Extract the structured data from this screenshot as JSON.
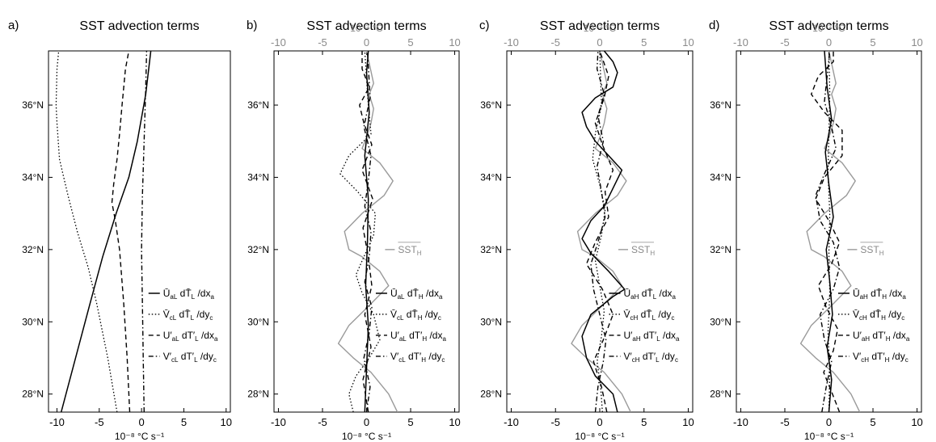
{
  "chart_data": [
    {
      "type": "line",
      "panel_label": "a)",
      "title": "SST advection terms",
      "xlabel": "10⁻⁸ °C s⁻¹",
      "xlim": [
        -11,
        10.5
      ],
      "xticks": [
        -10,
        -5,
        0,
        5,
        10
      ],
      "ylim": [
        27.5,
        37.5
      ],
      "yticks": [
        28,
        30,
        32,
        34,
        36
      ],
      "ytick_labels": [
        "28°N",
        "30°N",
        "32°N",
        "34°N",
        "36°N"
      ],
      "legend_placement": "bottom-right",
      "series": [
        {
          "name": "Ū_aL dT̄_L /dx_a",
          "style": "solid",
          "x": [
            -9.5,
            -7.8,
            -6.1,
            -4.6,
            -3.0,
            -1.5,
            -0.5,
            0.5,
            1.1
          ],
          "y": [
            27.5,
            29.0,
            30.5,
            31.8,
            33.0,
            34.0,
            35.0,
            36.3,
            37.5
          ]
        },
        {
          "name": "V̄_cL dT̄_L /dy_c",
          "style": "dotted",
          "x": [
            -2.9,
            -4.0,
            -5.3,
            -6.3,
            -7.6,
            -8.7,
            -9.7,
            -10.0,
            -10.1,
            -10.0,
            -9.8
          ],
          "y": [
            27.5,
            29.0,
            30.5,
            31.5,
            32.5,
            33.5,
            34.5,
            35.5,
            36.0,
            37.0,
            37.5
          ]
        },
        {
          "name": "U′_aL dT′_L /dx_a",
          "style": "dashed",
          "x": [
            -1.4,
            -1.7,
            -2.1,
            -2.6,
            -3.1,
            -3.5,
            -3.3,
            -2.9,
            -2.6,
            -2.3,
            -1.9,
            -1.5
          ],
          "y": [
            27.5,
            29.0,
            30.5,
            32.0,
            32.8,
            33.3,
            33.8,
            34.5,
            35.2,
            36.0,
            37.0,
            37.5
          ]
        },
        {
          "name": "V′_cL dT′_L /dy_c",
          "style": "dashdot",
          "x": [
            0.3,
            0.2,
            0.1,
            0.0,
            0.1,
            0.3,
            0.5,
            0.6
          ],
          "y": [
            27.5,
            29.0,
            30.5,
            32.0,
            33.5,
            35.0,
            36.5,
            37.5
          ]
        }
      ]
    },
    {
      "type": "line",
      "panel_label": "b)",
      "title": "SST advection terms",
      "top_axis_label": "10⁻² °C",
      "xlabel": "10⁻⁸ °C s⁻¹",
      "xlim": [
        -10.5,
        10.5
      ],
      "xticks": [
        -10,
        -5,
        0,
        5,
        10
      ],
      "ylim": [
        27.5,
        37.5
      ],
      "yticks": [
        28,
        30,
        32,
        34,
        36
      ],
      "ytick_labels": [
        "28°N",
        "30°N",
        "32°N",
        "34°N",
        "36°N"
      ],
      "legend_placement": "bottom-right",
      "sst_label": "SST_H",
      "series": [
        {
          "name": "SST_H",
          "style": "gray",
          "x": [
            3.5,
            2.5,
            0.5,
            -1.5,
            -3.2,
            -2.0,
            0.5,
            2.5,
            1.5,
            -0.5,
            -2.0,
            -2.5,
            -0.5,
            2.0,
            3.0,
            1.5,
            -0.5,
            0.0,
            0.5,
            0.8,
            0.3,
            0.8,
            0.0
          ],
          "y": [
            27.5,
            28.0,
            28.6,
            29.0,
            29.4,
            29.9,
            30.5,
            31.0,
            31.4,
            31.8,
            32.0,
            32.5,
            33.0,
            33.5,
            33.9,
            34.4,
            34.8,
            35.1,
            35.5,
            35.9,
            36.3,
            36.6,
            37.5
          ]
        },
        {
          "name": "Ū_aL dT̄_H /dx_a",
          "style": "solid",
          "x": [
            -0.2,
            0.0,
            0.2,
            -0.1,
            0.1,
            0.2,
            -0.2,
            0.3,
            0.0,
            0.2
          ],
          "y": [
            27.5,
            28.7,
            29.9,
            31.0,
            32.2,
            33.4,
            34.6,
            35.8,
            36.9,
            37.5
          ]
        },
        {
          "name": "V̄_cL dT̄_H /dy_c",
          "style": "dotted",
          "x": [
            -1.5,
            -2.0,
            -1.2,
            0.3,
            1.5,
            0.8,
            -0.5,
            -1.2,
            -0.3,
            0.8,
            1.0,
            -1.0,
            -3.0,
            -2.0,
            0.5,
            0.2,
            -0.2
          ],
          "y": [
            27.5,
            28.0,
            28.5,
            29.0,
            29.5,
            30.2,
            30.8,
            31.3,
            31.8,
            32.4,
            33.0,
            33.6,
            34.1,
            34.6,
            35.2,
            36.0,
            37.5
          ]
        },
        {
          "name": "U′_aL dT′_H /dx_a",
          "style": "dashed",
          "x": [
            0.2,
            -0.4,
            0.5,
            -0.2,
            0.6,
            0.2,
            -0.4,
            0.7,
            -0.5,
            0.6,
            -0.3,
            -0.8,
            0.3,
            -0.5,
            -0.5
          ],
          "y": [
            27.5,
            28.4,
            29.3,
            30.2,
            31.0,
            31.8,
            32.6,
            33.4,
            34.2,
            34.9,
            35.5,
            36.0,
            36.5,
            37.0,
            37.5
          ]
        },
        {
          "name": "V′_cL dT′_H /dy_c",
          "style": "dashdot",
          "x": [
            0.0,
            0.4,
            -0.3,
            0.3,
            0.6,
            -0.2,
            0.3,
            0.5,
            -0.2,
            0.2,
            0.5,
            -0.3,
            0.4,
            0.1
          ],
          "y": [
            27.5,
            28.2,
            29.0,
            29.7,
            30.4,
            31.1,
            31.8,
            32.5,
            33.2,
            33.9,
            34.6,
            35.4,
            36.2,
            37.5
          ]
        }
      ]
    },
    {
      "type": "line",
      "panel_label": "c)",
      "title": "SST advection terms",
      "top_axis_label": "10⁻² °C",
      "xlabel": "10⁻⁸ °C s⁻¹",
      "xlim": [
        -10.5,
        10.5
      ],
      "xticks": [
        -10,
        -5,
        0,
        5,
        10
      ],
      "ylim": [
        27.5,
        37.5
      ],
      "yticks": [
        28,
        30,
        32,
        34,
        36
      ],
      "ytick_labels": [
        "28°N",
        "30°N",
        "32°N",
        "34°N",
        "36°N"
      ],
      "legend_placement": "bottom-right",
      "sst_label": "SST_H",
      "series": [
        {
          "name": "SST_H",
          "style": "gray",
          "x": [
            3.5,
            2.5,
            0.5,
            -1.5,
            -3.2,
            -2.0,
            0.5,
            2.5,
            1.5,
            -0.5,
            -2.0,
            -2.5,
            -0.5,
            2.0,
            3.0,
            1.5,
            -0.5,
            0.0,
            0.5,
            0.8,
            0.3,
            0.8,
            0.0
          ],
          "y": [
            27.5,
            28.0,
            28.6,
            29.0,
            29.4,
            29.9,
            30.5,
            31.0,
            31.4,
            31.8,
            32.0,
            32.5,
            33.0,
            33.5,
            33.9,
            34.4,
            34.8,
            35.1,
            35.5,
            35.9,
            36.3,
            36.6,
            37.5
          ]
        },
        {
          "name": "Ū_aH dT̄_L /dx_a",
          "style": "solid",
          "x": [
            2.0,
            1.5,
            -0.5,
            -1.5,
            -2.0,
            -1.0,
            1.5,
            2.8,
            1.0,
            -1.0,
            -2.0,
            -1.0,
            0.5,
            1.5,
            2.5,
            1.0,
            -0.5,
            -1.5,
            -2.0,
            -0.5,
            1.5,
            2.0,
            1.5,
            0.5
          ],
          "y": [
            27.5,
            28.0,
            28.5,
            29.0,
            29.6,
            30.2,
            30.7,
            30.9,
            31.4,
            31.9,
            32.3,
            32.8,
            33.2,
            33.7,
            34.2,
            34.6,
            35.0,
            35.4,
            35.8,
            36.2,
            36.5,
            36.9,
            37.2,
            37.5
          ]
        },
        {
          "name": "V̄_cH dT̄_L /dy_c",
          "style": "dotted",
          "x": [
            0.3,
            0.1,
            -0.3,
            0.2,
            0.5,
            0.0,
            -0.5,
            0.2,
            0.6,
            0.0,
            -0.8,
            -0.5,
            0.2,
            0.0
          ],
          "y": [
            27.5,
            28.2,
            28.9,
            29.6,
            30.3,
            31.0,
            31.7,
            32.4,
            33.1,
            33.8,
            34.5,
            35.2,
            36.0,
            37.5
          ]
        },
        {
          "name": "U′_aH dT′_L /dx_a",
          "style": "dashed",
          "x": [
            0.8,
            0.2,
            -0.7,
            0.4,
            1.5,
            0.3,
            -1.5,
            -0.5,
            1.0,
            0.6,
            1.5,
            0.3,
            -0.5,
            0.5,
            1.0,
            0.0
          ],
          "y": [
            27.5,
            28.2,
            28.9,
            29.5,
            30.2,
            30.9,
            31.6,
            32.2,
            32.9,
            33.6,
            34.2,
            34.9,
            35.5,
            36.2,
            36.8,
            37.5
          ]
        },
        {
          "name": "V′_cH dT′_L /dy_c",
          "style": "dashdot",
          "x": [
            -0.5,
            -0.2,
            0.4,
            0.7,
            0.0,
            -0.7,
            -1.0,
            -0.2,
            0.6,
            0.2,
            -0.3,
            0.4,
            -0.2,
            0.5,
            -0.3,
            -0.2
          ],
          "y": [
            27.5,
            28.2,
            28.9,
            29.5,
            30.2,
            30.9,
            31.6,
            32.2,
            32.9,
            33.6,
            34.3,
            35.0,
            35.7,
            36.3,
            37.0,
            37.5
          ]
        }
      ]
    },
    {
      "type": "line",
      "panel_label": "d)",
      "title": "SST advection terms",
      "top_axis_label": "10⁻² °C",
      "xlabel": "10⁻⁸ °C s⁻¹",
      "xlim": [
        -10.5,
        10.5
      ],
      "xticks": [
        -10,
        -5,
        0,
        5,
        10
      ],
      "ylim": [
        27.5,
        37.5
      ],
      "yticks": [
        28,
        30,
        32,
        34,
        36
      ],
      "ytick_labels": [
        "28°N",
        "30°N",
        "32°N",
        "34°N",
        "36°N"
      ],
      "legend_placement": "bottom-right",
      "sst_label": "SST_H",
      "series": [
        {
          "name": "SST_H",
          "style": "gray",
          "x": [
            3.5,
            2.5,
            0.5,
            -1.5,
            -3.2,
            -2.0,
            0.5,
            2.5,
            1.5,
            -0.5,
            -2.0,
            -2.5,
            -0.5,
            2.0,
            3.0,
            1.5,
            -0.5,
            0.0,
            0.5,
            0.8,
            0.3,
            0.8,
            0.0
          ],
          "y": [
            27.5,
            28.0,
            28.6,
            29.0,
            29.4,
            29.9,
            30.5,
            31.0,
            31.4,
            31.8,
            32.0,
            32.5,
            33.0,
            33.5,
            33.9,
            34.4,
            34.8,
            35.1,
            35.5,
            35.9,
            36.3,
            36.6,
            37.5
          ]
        },
        {
          "name": "Ū_aH dT̄_H /dx_a",
          "style": "solid",
          "x": [
            0.0,
            0.3,
            -0.2,
            0.4,
            0.1,
            -0.3,
            0.5,
            0.0,
            -0.4,
            0.3,
            -0.2,
            -0.5
          ],
          "y": [
            27.5,
            28.4,
            29.3,
            30.2,
            31.1,
            32.0,
            32.9,
            33.8,
            34.7,
            35.6,
            36.5,
            37.5
          ]
        },
        {
          "name": "V̄_cH dT̄_H /dy_c",
          "style": "dotted",
          "x": [
            0.0,
            0.1,
            -0.1,
            0.1,
            0.0,
            0.1,
            -0.1,
            0.0,
            0.1,
            0.0
          ],
          "y": [
            27.5,
            28.6,
            29.7,
            30.8,
            31.9,
            33.0,
            34.1,
            35.2,
            36.3,
            37.5
          ]
        },
        {
          "name": "U′_aH dT′_H /dx_a",
          "style": "dashed",
          "x": [
            1.2,
            0.4,
            -0.6,
            0.5,
            1.0,
            -0.3,
            -1.2,
            0.3,
            1.2,
            0.0,
            -1.5,
            -0.5,
            1.5,
            1.5,
            -0.5,
            -2.0,
            -1.2,
            0.5,
            0.5
          ],
          "y": [
            27.5,
            28.0,
            28.6,
            29.2,
            29.8,
            30.4,
            31.0,
            31.6,
            32.2,
            32.8,
            33.4,
            34.0,
            34.6,
            35.3,
            35.8,
            36.3,
            36.8,
            37.2,
            37.5
          ]
        },
        {
          "name": "V′_cH dT′_H /dy_c",
          "style": "dashdot",
          "x": [
            -0.8,
            -0.3,
            0.3,
            -0.5,
            -1.0,
            0.5,
            1.2,
            0.5,
            -1.0,
            -1.5,
            -0.5,
            0.8,
            0.3,
            -0.5,
            -0.2,
            0.1
          ],
          "y": [
            27.5,
            28.2,
            28.9,
            29.5,
            30.2,
            30.9,
            31.5,
            32.2,
            32.8,
            33.5,
            34.1,
            34.8,
            35.4,
            36.1,
            36.8,
            37.5
          ]
        }
      ]
    }
  ]
}
